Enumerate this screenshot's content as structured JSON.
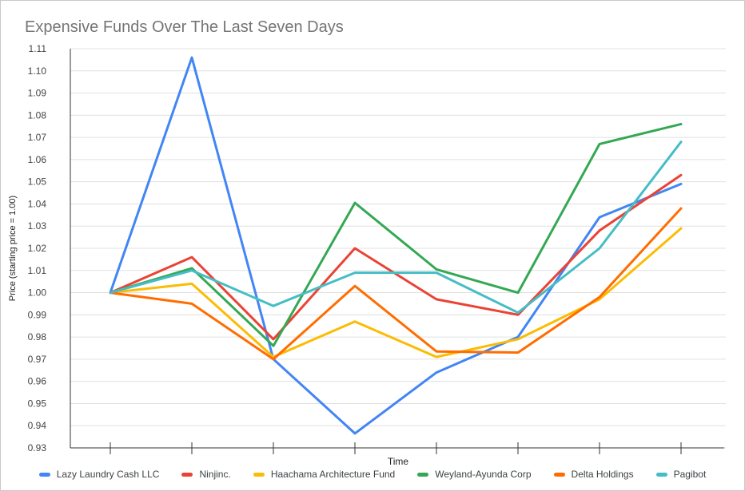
{
  "chart_data": {
    "type": "line",
    "title": "Expensive Funds Over The Last Seven Days",
    "xlabel": "Time",
    "ylabel": "Price (starting price = 1.00)",
    "ylim": [
      0.93,
      1.11
    ],
    "ytick_step": 0.01,
    "ytick_labels": [
      "0.93",
      "0.94",
      "0.95",
      "0.96",
      "0.97",
      "0.98",
      "0.99",
      "1.00",
      "1.01",
      "1.02",
      "1.03",
      "1.04",
      "1.05",
      "1.06",
      "1.07",
      "1.08",
      "1.09",
      "1.10",
      "1.11"
    ],
    "x_point_count": 8,
    "x_tick_labels": [
      "",
      "",
      "",
      "",
      "",
      "",
      "",
      ""
    ],
    "grid": true,
    "legend_position": "bottom",
    "series": [
      {
        "name": "Lazy Laundry Cash LLC",
        "color": "#4285f4",
        "values": [
          1.0,
          1.106,
          0.97,
          0.9365,
          0.964,
          0.98,
          1.034,
          1.049
        ]
      },
      {
        "name": "Ninjinc.",
        "color": "#ea4335",
        "values": [
          1.0,
          1.016,
          0.979,
          1.02,
          0.997,
          0.99,
          1.028,
          1.053
        ]
      },
      {
        "name": "Haachama Architecture Fund",
        "color": "#fbbc04",
        "values": [
          1.0,
          1.004,
          0.971,
          0.987,
          0.971,
          0.979,
          0.997,
          1.029
        ]
      },
      {
        "name": "Weyland-Ayunda Corp",
        "color": "#34a853",
        "values": [
          1.0,
          1.011,
          0.976,
          1.0405,
          1.0105,
          1.0,
          1.067,
          1.076
        ]
      },
      {
        "name": "Delta Holdings",
        "color": "#ff6d01",
        "values": [
          1.0,
          0.995,
          0.97,
          1.003,
          0.9735,
          0.973,
          0.998,
          1.038
        ]
      },
      {
        "name": "Pagibot",
        "color": "#46bdc6",
        "values": [
          1.0,
          1.01,
          0.994,
          1.009,
          1.009,
          0.991,
          1.02,
          1.068
        ]
      }
    ],
    "colors": {
      "title": "#757575",
      "axis_line": "#333333",
      "grid_line": "#e0e0e0",
      "tick_label": "#444444",
      "axis_title": "#222222",
      "legend_text": "#3c4043",
      "background": "#ffffff",
      "page_border": "#c9c9c9"
    }
  }
}
